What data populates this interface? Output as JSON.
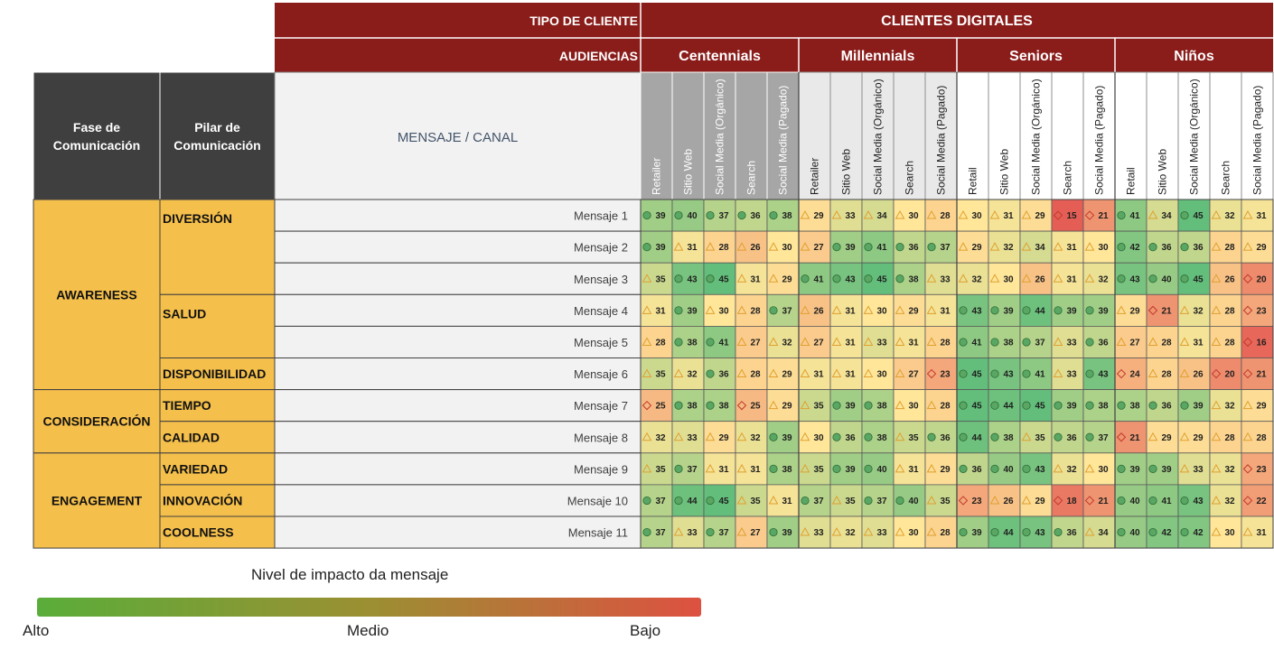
{
  "header": {
    "tipo_label": "TIPO DE CLIENTE",
    "audiencias_label": "AUDIENCIAS",
    "group_label": "CLIENTES DIGITALES",
    "fase_label": "Fase de Comunicación",
    "pilar_label": "Pilar de Comunicación",
    "mensaje_canal_label": "MENSAJE  /  CANAL"
  },
  "colors": {
    "header_red": "#8a1c1a",
    "dark_header": "#3f3f3f",
    "phase_yellow": "#f4bf4b",
    "high_green": "#5aad3a",
    "mid": "#ffe699",
    "low_red": "#e2564a"
  },
  "legend": {
    "title": "Nivel de impacto da mensaje",
    "high": "Alto",
    "mid": "Medio",
    "low": "Bajo"
  },
  "chart_data": {
    "type": "heatmap",
    "audiences": [
      "Centennials",
      "Millennials",
      "Seniors",
      "Niños"
    ],
    "channels": [
      [
        "Retailer",
        "Sitio Web",
        "Social Media (Orgánico)",
        "Search",
        "Social Media (Pagado)"
      ],
      [
        "Retailer",
        "Sitio Web",
        "Social Media (Orgánico)",
        "Search",
        "Social Media (Pagado)"
      ],
      [
        "Retail",
        "Sitio Web",
        "Social Media (Orgánico)",
        "Search",
        "Social Media (Pagado)"
      ],
      [
        "Retail",
        "Sitio Web",
        "Social Media (Orgánico)",
        "Search",
        "Social Media (Pagado)"
      ]
    ],
    "phases": [
      {
        "name": "AWARENESS",
        "rows": 6
      },
      {
        "name": "CONSIDERACIÓN",
        "rows": 2
      },
      {
        "name": "ENGAGEMENT",
        "rows": 3
      }
    ],
    "pillars": [
      {
        "name": "DIVERSIÓN",
        "rows": 3
      },
      {
        "name": "SALUD",
        "rows": 2
      },
      {
        "name": "DISPONIBILIDAD",
        "rows": 1
      },
      {
        "name": "TIEMPO",
        "rows": 1
      },
      {
        "name": "CALIDAD",
        "rows": 1
      },
      {
        "name": "VARIEDAD",
        "rows": 1
      },
      {
        "name": "INNOVACIÓN",
        "rows": 1
      },
      {
        "name": "COOLNESS",
        "rows": 1
      }
    ],
    "messages": [
      "Mensaje 1",
      "Mensaje 2",
      "Mensaje 3",
      "Mensaje 4",
      "Mensaje 5",
      "Mensaje 6",
      "Mensaje 7",
      "Mensaje 8",
      "Mensaje 9",
      "Mensaje 10",
      "Mensaje 11"
    ],
    "values": [
      [
        39,
        40,
        37,
        36,
        38,
        29,
        33,
        34,
        30,
        28,
        30,
        31,
        29,
        15,
        21,
        41,
        34,
        45,
        32,
        31
      ],
      [
        39,
        31,
        28,
        26,
        30,
        27,
        39,
        41,
        36,
        37,
        29,
        32,
        34,
        31,
        30,
        42,
        36,
        36,
        28,
        29
      ],
      [
        35,
        43,
        45,
        31,
        29,
        41,
        43,
        45,
        38,
        33,
        32,
        30,
        26,
        31,
        32,
        43,
        40,
        45,
        26,
        20
      ],
      [
        31,
        39,
        30,
        28,
        37,
        26,
        31,
        30,
        29,
        31,
        43,
        39,
        44,
        39,
        39,
        29,
        21,
        32,
        28,
        23
      ],
      [
        28,
        38,
        41,
        27,
        32,
        27,
        31,
        33,
        31,
        28,
        41,
        38,
        37,
        33,
        36,
        27,
        28,
        31,
        28,
        16
      ],
      [
        35,
        32,
        36,
        28,
        29,
        31,
        31,
        30,
        27,
        23,
        45,
        43,
        41,
        33,
        43,
        24,
        28,
        26,
        20,
        21
      ],
      [
        25,
        38,
        38,
        25,
        29,
        35,
        39,
        38,
        30,
        28,
        45,
        44,
        45,
        39,
        38,
        38,
        36,
        39,
        32,
        29
      ],
      [
        32,
        33,
        29,
        32,
        39,
        30,
        36,
        38,
        35,
        36,
        44,
        38,
        35,
        36,
        37,
        21,
        29,
        29,
        28,
        28
      ],
      [
        35,
        37,
        31,
        31,
        38,
        35,
        39,
        40,
        31,
        29,
        36,
        40,
        43,
        32,
        30,
        39,
        39,
        33,
        32,
        23
      ],
      [
        37,
        44,
        45,
        35,
        31,
        37,
        35,
        37,
        40,
        35,
        23,
        26,
        29,
        18,
        21,
        40,
        41,
        43,
        32,
        22
      ],
      [
        37,
        33,
        37,
        27,
        39,
        33,
        32,
        33,
        30,
        28,
        39,
        44,
        43,
        36,
        34,
        40,
        42,
        42,
        30,
        31
      ]
    ],
    "icon_rule": "circle for values of 36 and above, triangle for 26-35, diamond for 25 and below"
  }
}
